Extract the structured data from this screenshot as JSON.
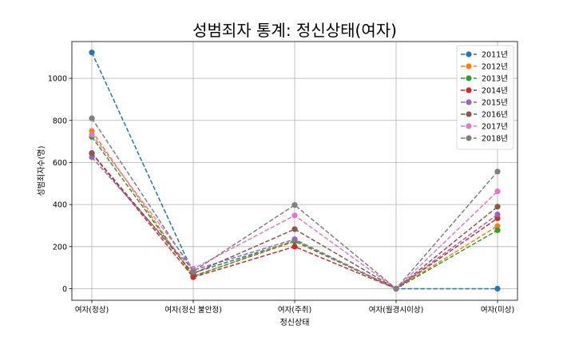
{
  "chart_data": {
    "type": "line",
    "title": "성범죄자 통계: 정신상태(여자)",
    "xlabel": "정신상태",
    "ylabel": "성범죄자수(명)",
    "categories": [
      "여자(정상)",
      "여자(정신 불안정)",
      "여자(주취)",
      "여자(월경시이상)",
      "여자(미상)"
    ],
    "ylim": [
      -55,
      1175
    ],
    "yticks": [
      0,
      200,
      400,
      600,
      800,
      1000
    ],
    "grid": true,
    "legend_position": "top-right",
    "series": [
      {
        "name": "2011년",
        "color": "#1f77b4",
        "values": [
          1123,
          75,
          228,
          0,
          0
        ]
      },
      {
        "name": "2012년",
        "color": "#ff7f0e",
        "values": [
          750,
          58,
          230,
          0,
          298
        ]
      },
      {
        "name": "2013년",
        "color": "#2ca02c",
        "values": [
          722,
          60,
          225,
          0,
          278
        ]
      },
      {
        "name": "2014년",
        "color": "#d62728",
        "values": [
          643,
          55,
          200,
          0,
          335
        ]
      },
      {
        "name": "2015년",
        "color": "#9467bd",
        "values": [
          625,
          88,
          235,
          0,
          353
        ]
      },
      {
        "name": "2016년",
        "color": "#8c564b",
        "values": [
          645,
          72,
          283,
          0,
          390
        ]
      },
      {
        "name": "2017년",
        "color": "#e377c2",
        "values": [
          733,
          95,
          348,
          0,
          463
        ]
      },
      {
        "name": "2018년",
        "color": "#7f7f7f",
        "values": [
          810,
          82,
          398,
          0,
          557
        ]
      }
    ]
  }
}
